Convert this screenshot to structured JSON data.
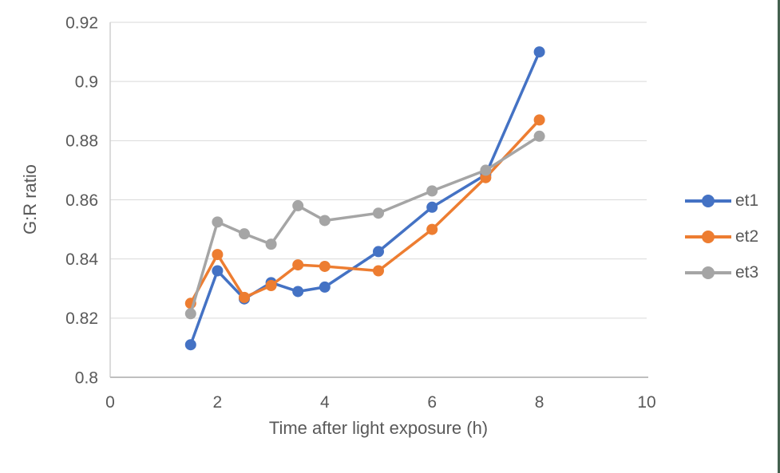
{
  "page": {
    "background": "#ffffff",
    "right_edge_stripe_color": "#44614f"
  },
  "chart_data": {
    "type": "line",
    "title": "",
    "xlabel": "Time after light exposure (h)",
    "ylabel": "G:R ratio",
    "x": [
      1.5,
      2,
      2.5,
      3,
      3.5,
      4,
      5,
      6,
      7,
      8
    ],
    "series": [
      {
        "name": "et1",
        "color": "#4472C4",
        "values": [
          0.811,
          0.836,
          0.8265,
          0.832,
          0.829,
          0.8305,
          0.8425,
          0.8575,
          0.8685,
          0.91
        ]
      },
      {
        "name": "et2",
        "color": "#ED7D31",
        "values": [
          0.825,
          0.8415,
          0.827,
          0.831,
          0.838,
          0.8375,
          0.836,
          0.85,
          0.8675,
          0.887
        ]
      },
      {
        "name": "et3",
        "color": "#A5A5A5",
        "values": [
          0.8215,
          0.8525,
          0.8485,
          0.845,
          0.858,
          0.853,
          0.8555,
          0.863,
          0.87,
          0.8815
        ]
      }
    ],
    "xlim": [
      0,
      10
    ],
    "ylim": [
      0.8,
      0.92
    ],
    "x_ticks": [
      "0",
      "2",
      "4",
      "6",
      "8",
      "10"
    ],
    "y_ticks": [
      "0.8",
      "0.82",
      "0.84",
      "0.86",
      "0.88",
      "0.9",
      "0.92"
    ],
    "grid": true,
    "legend_position": "right",
    "gridline_color": "#D9D9D9",
    "axis_line_color": "#BFBFBF",
    "tick_label_color": "#595959"
  }
}
